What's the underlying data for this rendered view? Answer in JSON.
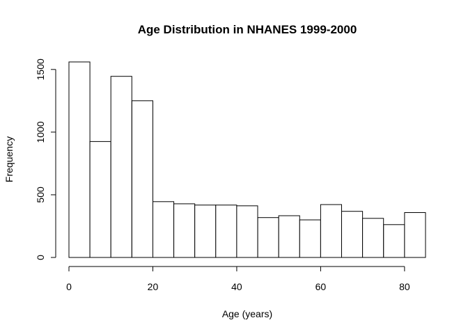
{
  "chart_data": {
    "type": "bar",
    "title": "Age Distribution in NHANES 1999-2000",
    "xlabel": "Age (years)",
    "ylabel": "Frequency",
    "bin_width": 5,
    "bins": [
      {
        "start": 0,
        "end": 5,
        "count": 1560
      },
      {
        "start": 5,
        "end": 10,
        "count": 925
      },
      {
        "start": 10,
        "end": 15,
        "count": 1445
      },
      {
        "start": 15,
        "end": 20,
        "count": 1250
      },
      {
        "start": 20,
        "end": 25,
        "count": 445
      },
      {
        "start": 25,
        "end": 30,
        "count": 428
      },
      {
        "start": 30,
        "end": 35,
        "count": 418
      },
      {
        "start": 35,
        "end": 40,
        "count": 418
      },
      {
        "start": 40,
        "end": 45,
        "count": 412
      },
      {
        "start": 45,
        "end": 50,
        "count": 318
      },
      {
        "start": 50,
        "end": 55,
        "count": 333
      },
      {
        "start": 55,
        "end": 60,
        "count": 300
      },
      {
        "start": 60,
        "end": 65,
        "count": 422
      },
      {
        "start": 65,
        "end": 70,
        "count": 368
      },
      {
        "start": 70,
        "end": 75,
        "count": 312
      },
      {
        "start": 75,
        "end": 80,
        "count": 262
      },
      {
        "start": 80,
        "end": 85,
        "count": 358
      }
    ],
    "xlim": [
      0,
      85
    ],
    "ylim": [
      0,
      1560
    ],
    "x_ticks": [
      0,
      20,
      40,
      60,
      80
    ],
    "y_ticks": [
      0,
      500,
      1000,
      1500
    ],
    "grid": false,
    "legend": "none"
  }
}
